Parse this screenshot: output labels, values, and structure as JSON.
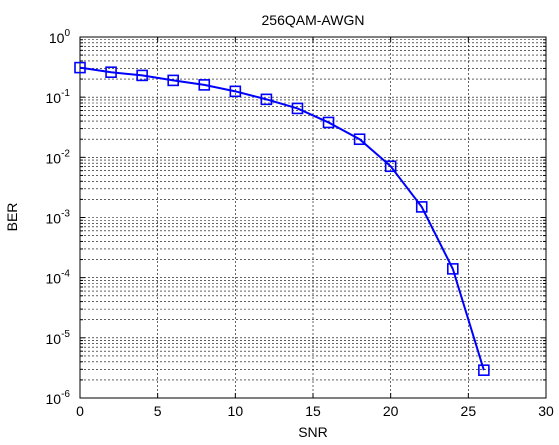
{
  "chart_data": {
    "type": "line",
    "title": "256QAM-AWGN",
    "xlabel": "SNR",
    "ylabel": "BER",
    "xlim": [
      0,
      30
    ],
    "ylim": [
      1e-06,
      1
    ],
    "yscale": "log",
    "grid": true,
    "x_ticks": [
      "0",
      "5",
      "10",
      "15",
      "20",
      "25",
      "30"
    ],
    "y_ticks": [
      {
        "base": "10",
        "exp": "0"
      },
      {
        "base": "10",
        "exp": "-1"
      },
      {
        "base": "10",
        "exp": "-2"
      },
      {
        "base": "10",
        "exp": "-3"
      },
      {
        "base": "10",
        "exp": "-4"
      },
      {
        "base": "10",
        "exp": "-5"
      },
      {
        "base": "10",
        "exp": "-6"
      }
    ],
    "series": [
      {
        "color": "#0000ff",
        "marker": "square",
        "x": [
          0,
          2,
          4,
          6,
          8,
          10,
          12,
          14,
          16,
          18,
          20,
          22,
          24,
          26
        ],
        "y": [
          0.31,
          0.26,
          0.23,
          0.19,
          0.16,
          0.125,
          0.092,
          0.065,
          0.038,
          0.02,
          0.0071,
          0.0015,
          0.00014,
          2.9e-06
        ]
      }
    ]
  }
}
